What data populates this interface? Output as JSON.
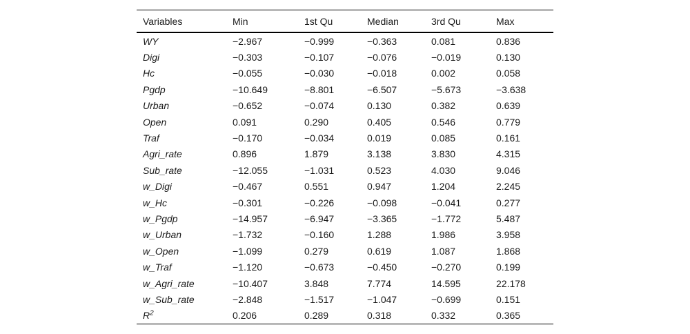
{
  "table": {
    "columns": [
      "Variables",
      "Min",
      "1st Qu",
      "Median",
      "3rd Qu",
      "Max"
    ],
    "rows": [
      {
        "variable": "WY",
        "sup": "",
        "values": [
          "−2.967",
          "−0.999",
          "−0.363",
          "0.081",
          "0.836"
        ]
      },
      {
        "variable": "Digi",
        "sup": "",
        "values": [
          "−0.303",
          "−0.107",
          "−0.076",
          "−0.019",
          "0.130"
        ]
      },
      {
        "variable": "Hc",
        "sup": "",
        "values": [
          "−0.055",
          "−0.030",
          "−0.018",
          "0.002",
          "0.058"
        ]
      },
      {
        "variable": "Pgdp",
        "sup": "",
        "values": [
          "−10.649",
          "−8.801",
          "−6.507",
          "−5.673",
          "−3.638"
        ]
      },
      {
        "variable": "Urban",
        "sup": "",
        "values": [
          "−0.652",
          "−0.074",
          "0.130",
          "0.382",
          "0.639"
        ]
      },
      {
        "variable": "Open",
        "sup": "",
        "values": [
          "0.091",
          "0.290",
          "0.405",
          "0.546",
          "0.779"
        ]
      },
      {
        "variable": "Traf",
        "sup": "",
        "values": [
          "−0.170",
          "−0.034",
          "0.019",
          "0.085",
          "0.161"
        ]
      },
      {
        "variable": "Agri_rate",
        "sup": "",
        "values": [
          "0.896",
          "1.879",
          "3.138",
          "3.830",
          "4.315"
        ]
      },
      {
        "variable": "Sub_rate",
        "sup": "",
        "values": [
          "−12.055",
          "−1.031",
          "0.523",
          "4.030",
          "9.046"
        ]
      },
      {
        "variable": "w_Digi",
        "sup": "",
        "values": [
          "−0.467",
          "0.551",
          "0.947",
          "1.204",
          "2.245"
        ]
      },
      {
        "variable": "w_Hc",
        "sup": "",
        "values": [
          "−0.301",
          "−0.226",
          "−0.098",
          "−0.041",
          "0.277"
        ]
      },
      {
        "variable": "w_Pgdp",
        "sup": "",
        "values": [
          "−14.957",
          "−6.947",
          "−3.365",
          "−1.772",
          "5.487"
        ]
      },
      {
        "variable": "w_Urban",
        "sup": "",
        "values": [
          "−1.732",
          "−0.160",
          "1.288",
          "1.986",
          "3.958"
        ]
      },
      {
        "variable": "w_Open",
        "sup": "",
        "values": [
          "−1.099",
          "0.279",
          "0.619",
          "1.087",
          "1.868"
        ]
      },
      {
        "variable": "w_Traf",
        "sup": "",
        "values": [
          "−1.120",
          "−0.673",
          "−0.450",
          "−0.270",
          "0.199"
        ]
      },
      {
        "variable": "w_Agri_rate",
        "sup": "",
        "values": [
          "−10.407",
          "3.848",
          "7.774",
          "14.595",
          "22.178"
        ]
      },
      {
        "variable": "w_Sub_rate",
        "sup": "",
        "values": [
          "−2.848",
          "−1.517",
          "−1.047",
          "−0.699",
          "0.151"
        ]
      },
      {
        "variable": "R",
        "sup": "2",
        "values": [
          "0.206",
          "0.289",
          "0.318",
          "0.332",
          "0.365"
        ]
      }
    ]
  }
}
